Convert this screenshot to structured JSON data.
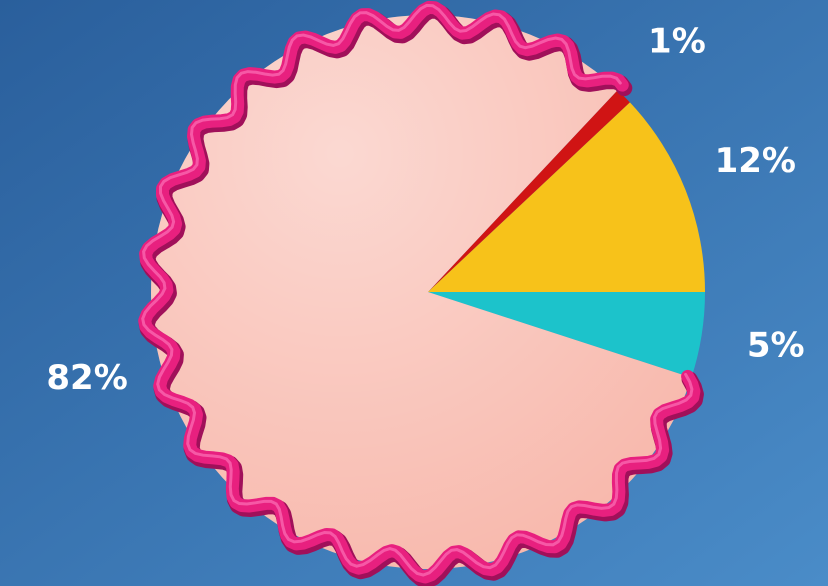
{
  "chart_data": {
    "type": "pie",
    "values": [
      1,
      12,
      5,
      82
    ],
    "value_labels": [
      "1%",
      "12%",
      "5%",
      "82%"
    ],
    "colors": [
      "#d01414",
      "#f7c21a",
      "#1cc3cb",
      "#f8b9ad"
    ]
  }
}
